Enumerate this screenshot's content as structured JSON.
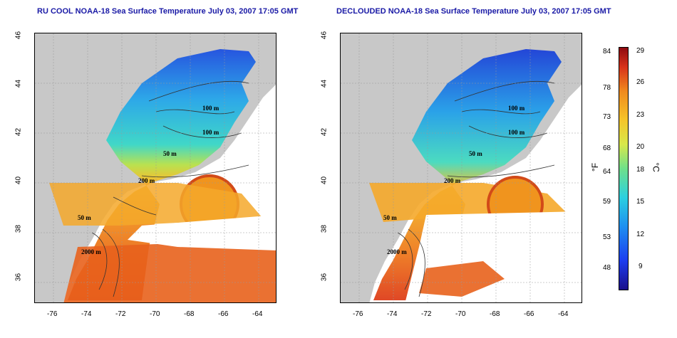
{
  "titles": {
    "left": "RU COOL NOAA-18 Sea Surface Temperature July 03, 2007 17:05 GMT",
    "right": "DECLOUDED NOAA-18 Sea Surface Temperature July 03, 2007 17:05 GMT"
  },
  "axes": {
    "x_ticks": [
      "-76",
      "-74",
      "-72",
      "-70",
      "-68",
      "-66",
      "-64"
    ],
    "y_ticks": [
      "36",
      "38",
      "40",
      "42",
      "44",
      "46"
    ]
  },
  "contour_labels": [
    "100 m",
    "100 m",
    "50 m",
    "200 m",
    "50 m",
    "2000 m"
  ],
  "colorbar": {
    "fahrenheit": [
      "84",
      "78",
      "73",
      "68",
      "64",
      "59",
      "53",
      "48"
    ],
    "celsius": [
      "29",
      "26",
      "23",
      "20",
      "18",
      "15",
      "12",
      "9"
    ],
    "unit_f": "°F",
    "unit_c": "°C"
  }
}
